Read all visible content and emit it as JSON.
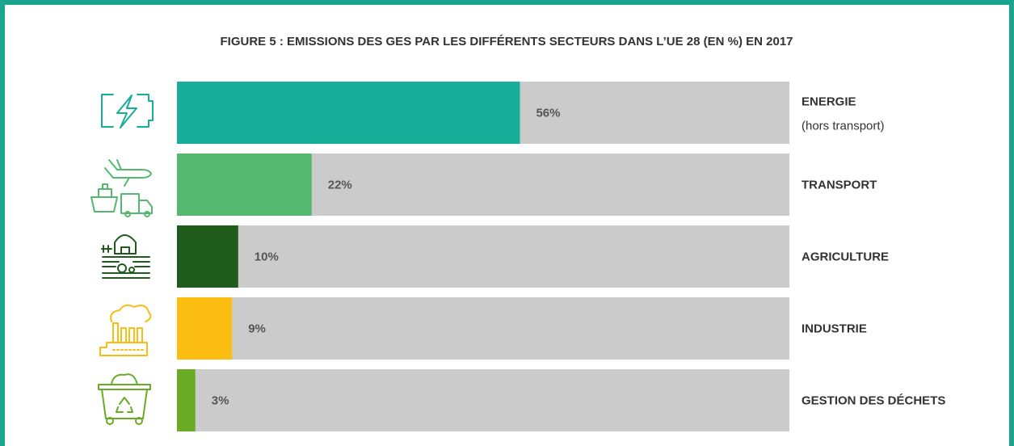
{
  "chart_data": {
    "type": "hbar",
    "title": "FIGURE 5 : EMISSIONS DES GES PAR LES DIFFÉRENTS SECTEURS DANS L’UE 28 (EN %) EN 2017",
    "categories": [
      "ENERGIE",
      "TRANSPORT",
      "AGRICULTURE",
      "INDUSTRIE",
      "GESTION DES DÉCHETS"
    ],
    "category_notes": [
      "(hors transport)",
      null,
      null,
      null,
      null
    ],
    "values": [
      56,
      22,
      10,
      9,
      3
    ],
    "value_labels": [
      "56%",
      "22%",
      "10%",
      "9%",
      "3%"
    ],
    "colors": [
      "#16ae98",
      "#55b86f",
      "#1f5c1c",
      "#fbbd12",
      "#6aab26"
    ],
    "xlim": [
      0,
      100
    ]
  }
}
